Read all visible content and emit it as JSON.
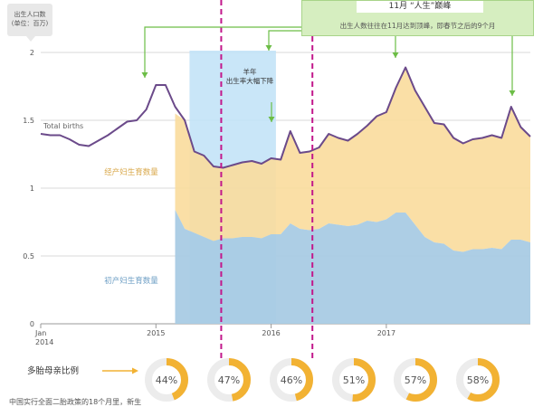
{
  "y_unit": {
    "line1": "出生人口数",
    "line2": "(单位：百万)"
  },
  "annotations": {
    "peak_title": "11月 “人生”巅峰",
    "peak_text": "出生人数往往在11月达到顶峰，即春节之后的9个月",
    "sheep_year_l1": "羊年",
    "sheep_year_l2": "出生率大幅下降",
    "total_births": "Total births",
    "second_child": "经产妇生育数量",
    "first_child": "初产妇生育数量"
  },
  "multi_birth": {
    "label": "多胎母亲比例",
    "values": [
      {
        "pct": 0.44,
        "text": "44%"
      },
      {
        "pct": 0.47,
        "text": "47%"
      },
      {
        "pct": 0.46,
        "text": "46%"
      },
      {
        "pct": 0.51,
        "text": "51%"
      },
      {
        "pct": 0.57,
        "text": "57%"
      },
      {
        "pct": 0.58,
        "text": "58%"
      }
    ]
  },
  "bottom_note": "中国实行全面二胎政策的18个月里，新生",
  "colors": {
    "total_line": "#6b4a8a",
    "second_area": "#f9dc9c",
    "first_area": "#a9cbe4",
    "highlight": "#bfe2f7",
    "policy_line": "#c2188b",
    "donut": "#f2b233",
    "arrow": "#6cbd46",
    "peak_box": "#d6eec0"
  },
  "chart_data": {
    "type": "area",
    "x_ticks": [
      "Jan\n2014",
      "2015",
      "2016",
      "2017"
    ],
    "y_ticks": [
      "0",
      "0.5",
      "1",
      "1.5",
      "2"
    ],
    "ylim": [
      0,
      2
    ],
    "series": [
      {
        "name": "Total births",
        "type": "line",
        "values": [
          1.4,
          1.39,
          1.39,
          1.36,
          1.32,
          1.31,
          1.35,
          1.39,
          1.44,
          1.49,
          1.5,
          1.58,
          1.76,
          1.76,
          1.6,
          1.5,
          1.27,
          1.24,
          1.16,
          1.15,
          1.17,
          1.19,
          1.2,
          1.18,
          1.22,
          1.21,
          1.42,
          1.26,
          1.27,
          1.3,
          1.4,
          1.37,
          1.35,
          1.4,
          1.46,
          1.53,
          1.56,
          1.74,
          1.89,
          1.72,
          1.6,
          1.48,
          1.47,
          1.37,
          1.33,
          1.36,
          1.37,
          1.39,
          1.37,
          1.6,
          1.45,
          1.38
        ]
      },
      {
        "name": "经产妇生育数量",
        "type": "area",
        "start_index": 14,
        "values": [
          1.55,
          1.5,
          1.27,
          1.24,
          1.16,
          1.15,
          1.17,
          1.19,
          1.2,
          1.18,
          1.22,
          1.21,
          1.42,
          1.26,
          1.27,
          1.3,
          1.4,
          1.37,
          1.35,
          1.4,
          1.46,
          1.53,
          1.56,
          1.74,
          1.89,
          1.72,
          1.6,
          1.48,
          1.47,
          1.37,
          1.33,
          1.36,
          1.37,
          1.39,
          1.37,
          1.6,
          1.45,
          1.38
        ]
      },
      {
        "name": "初产妇生育数量",
        "type": "area",
        "start_index": 14,
        "values": [
          0.84,
          0.7,
          0.67,
          0.64,
          0.61,
          0.63,
          0.63,
          0.64,
          0.64,
          0.63,
          0.66,
          0.66,
          0.74,
          0.7,
          0.69,
          0.7,
          0.74,
          0.73,
          0.72,
          0.73,
          0.76,
          0.75,
          0.77,
          0.82,
          0.82,
          0.73,
          0.64,
          0.6,
          0.59,
          0.54,
          0.53,
          0.55,
          0.55,
          0.56,
          0.55,
          0.62,
          0.62,
          0.6
        ]
      }
    ],
    "highlight_range": [
      15.5,
      24.5
    ],
    "policy_lines": [
      18.8,
      28.3
    ],
    "peak_points": [
      12.5,
      38.5,
      49.5
    ]
  }
}
